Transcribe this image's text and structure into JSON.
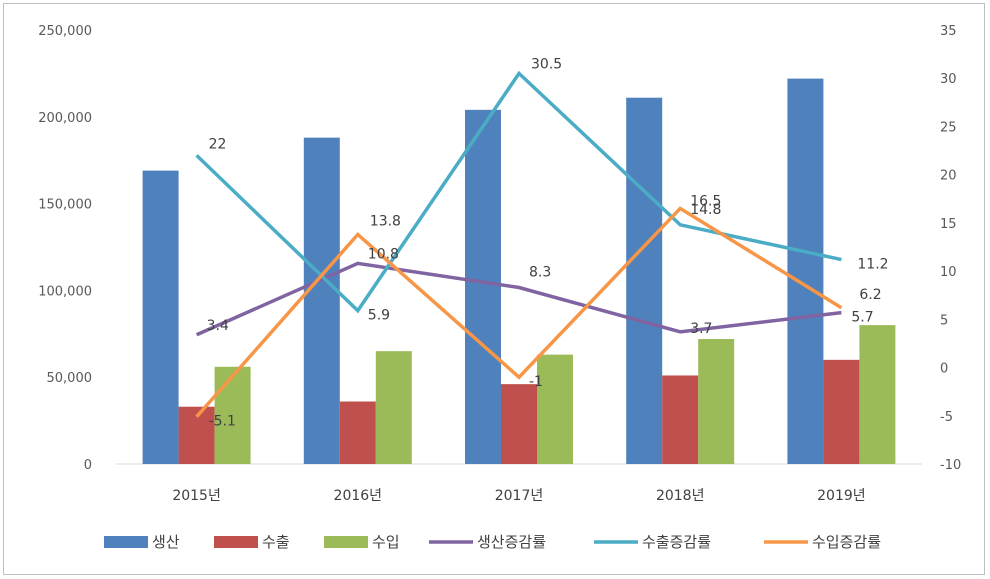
{
  "chart_data": {
    "type": "bar+line",
    "categories": [
      "2015년",
      "2016년",
      "2017년",
      "2018년",
      "2019년"
    ],
    "left_axis": {
      "ylim": [
        0,
        250000
      ],
      "ticks": [
        "0",
        "50,000",
        "100,000",
        "150,000",
        "200,000",
        "250,000"
      ],
      "tick_values": [
        0,
        50000,
        100000,
        150000,
        200000,
        250000
      ]
    },
    "right_axis": {
      "ylim": [
        -10,
        35
      ],
      "ticks": [
        "-10",
        "-5",
        "0",
        "5",
        "10",
        "15",
        "20",
        "25",
        "30",
        "35"
      ],
      "tick_values": [
        -10,
        -5,
        0,
        5,
        10,
        15,
        20,
        25,
        30,
        35
      ]
    },
    "bar_series": [
      {
        "name": "생산",
        "color": "#4f81bd",
        "values": [
          169000,
          188000,
          204000,
          211000,
          222000
        ]
      },
      {
        "name": "수출",
        "color": "#c0504d",
        "values": [
          33000,
          36000,
          46000,
          51000,
          60000
        ]
      },
      {
        "name": "수입",
        "color": "#9bbb59",
        "values": [
          56000,
          65000,
          63000,
          72000,
          80000
        ]
      }
    ],
    "line_series": [
      {
        "name": "생산증감률",
        "color": "#8064a2",
        "values": [
          3.4,
          10.8,
          8.3,
          3.7,
          5.7
        ],
        "labels": [
          "3.4",
          "10.8",
          "8.3",
          "3.7",
          "5.7"
        ]
      },
      {
        "name": "수출증감률",
        "color": "#4bacc6",
        "values": [
          22,
          5.9,
          30.5,
          14.8,
          11.2
        ],
        "labels": [
          "22",
          "5.9",
          "30.5",
          "14.8",
          "11.2"
        ]
      },
      {
        "name": "수입증감률",
        "color": "#f79646",
        "values": [
          -5.1,
          13.8,
          -1,
          16.5,
          6.2
        ],
        "labels": [
          "-5.1",
          "13.8",
          "-1",
          "16.5",
          "6.2"
        ]
      }
    ],
    "grid": false,
    "legend_position": "bottom"
  }
}
